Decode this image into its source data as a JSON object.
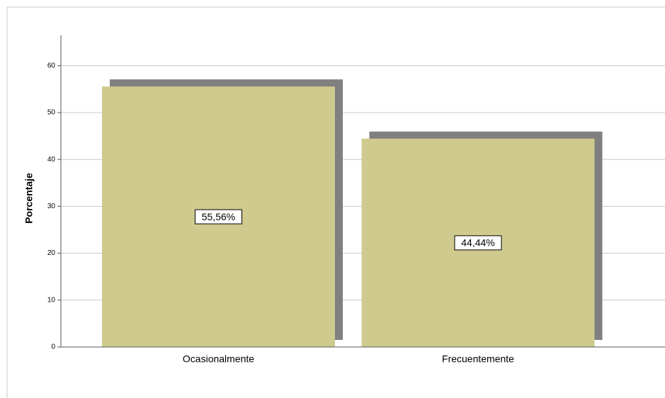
{
  "chart_data": {
    "type": "bar",
    "y_label": "Porcentaje",
    "categories": [
      "Ocasionalmente",
      "Frecuentemente"
    ],
    "values": [
      55.56,
      44.44
    ],
    "value_labels": [
      "55,56%",
      "44,44%"
    ],
    "color": "#cfca8e",
    "shadow_color": "#808080",
    "ylim": [
      0,
      66
    ],
    "yticks": [
      0,
      10,
      20,
      30,
      40,
      50,
      60
    ],
    "grid": true
  }
}
